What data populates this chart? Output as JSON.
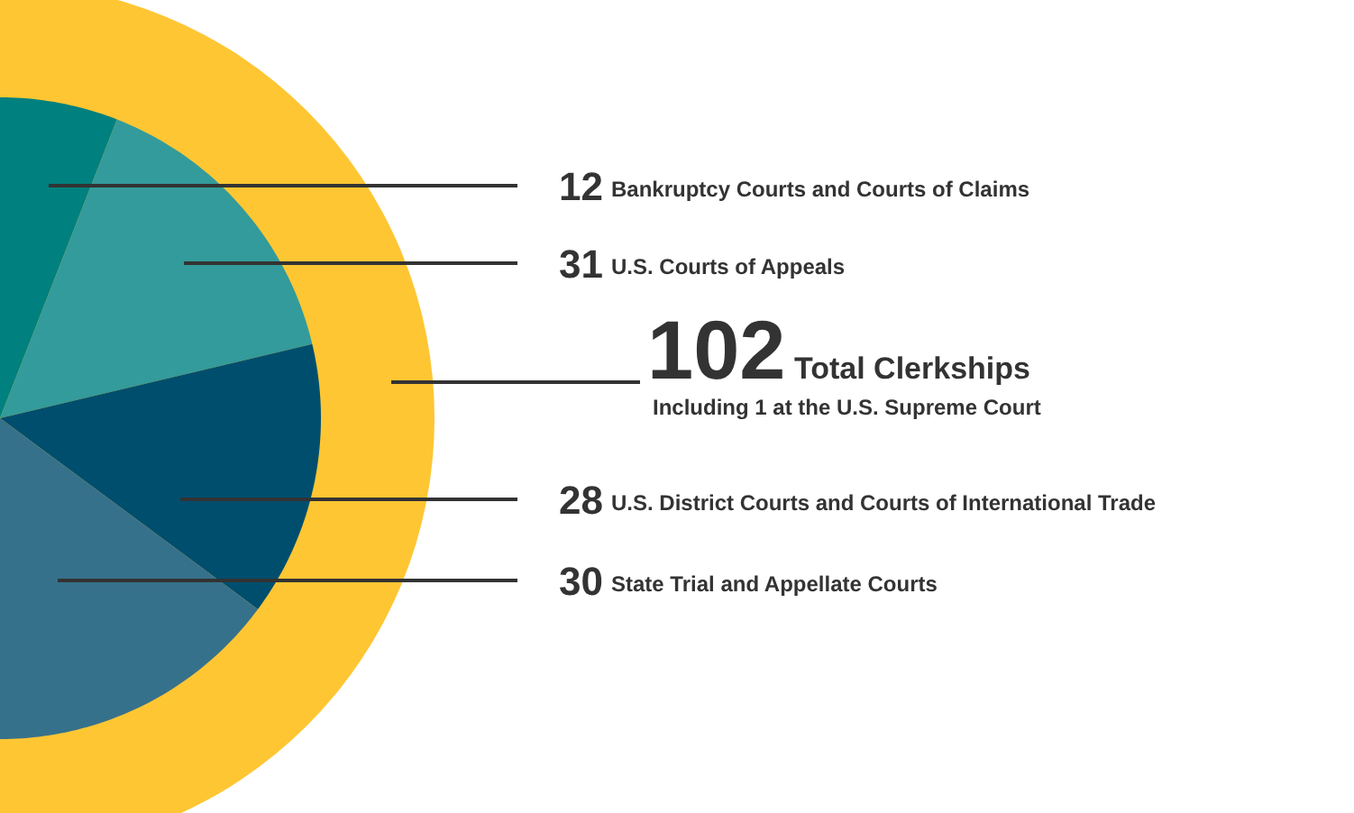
{
  "chart_data": {
    "type": "pie",
    "categories": [
      "Bankruptcy Courts and Courts of Claims",
      "U.S. Courts of Appeals",
      "U.S. District Courts and Courts of International Trade",
      "State Trial and Appellate Courts"
    ],
    "values": [
      12,
      31,
      28,
      30
    ],
    "colors": [
      "#00807e",
      "#339b9b",
      "#004e6e",
      "#36718b"
    ],
    "data_labels": true,
    "annotations": [
      "102",
      "Total Clerkships",
      "Including 1 at the U.S. Supreme Court"
    ]
  }
}
